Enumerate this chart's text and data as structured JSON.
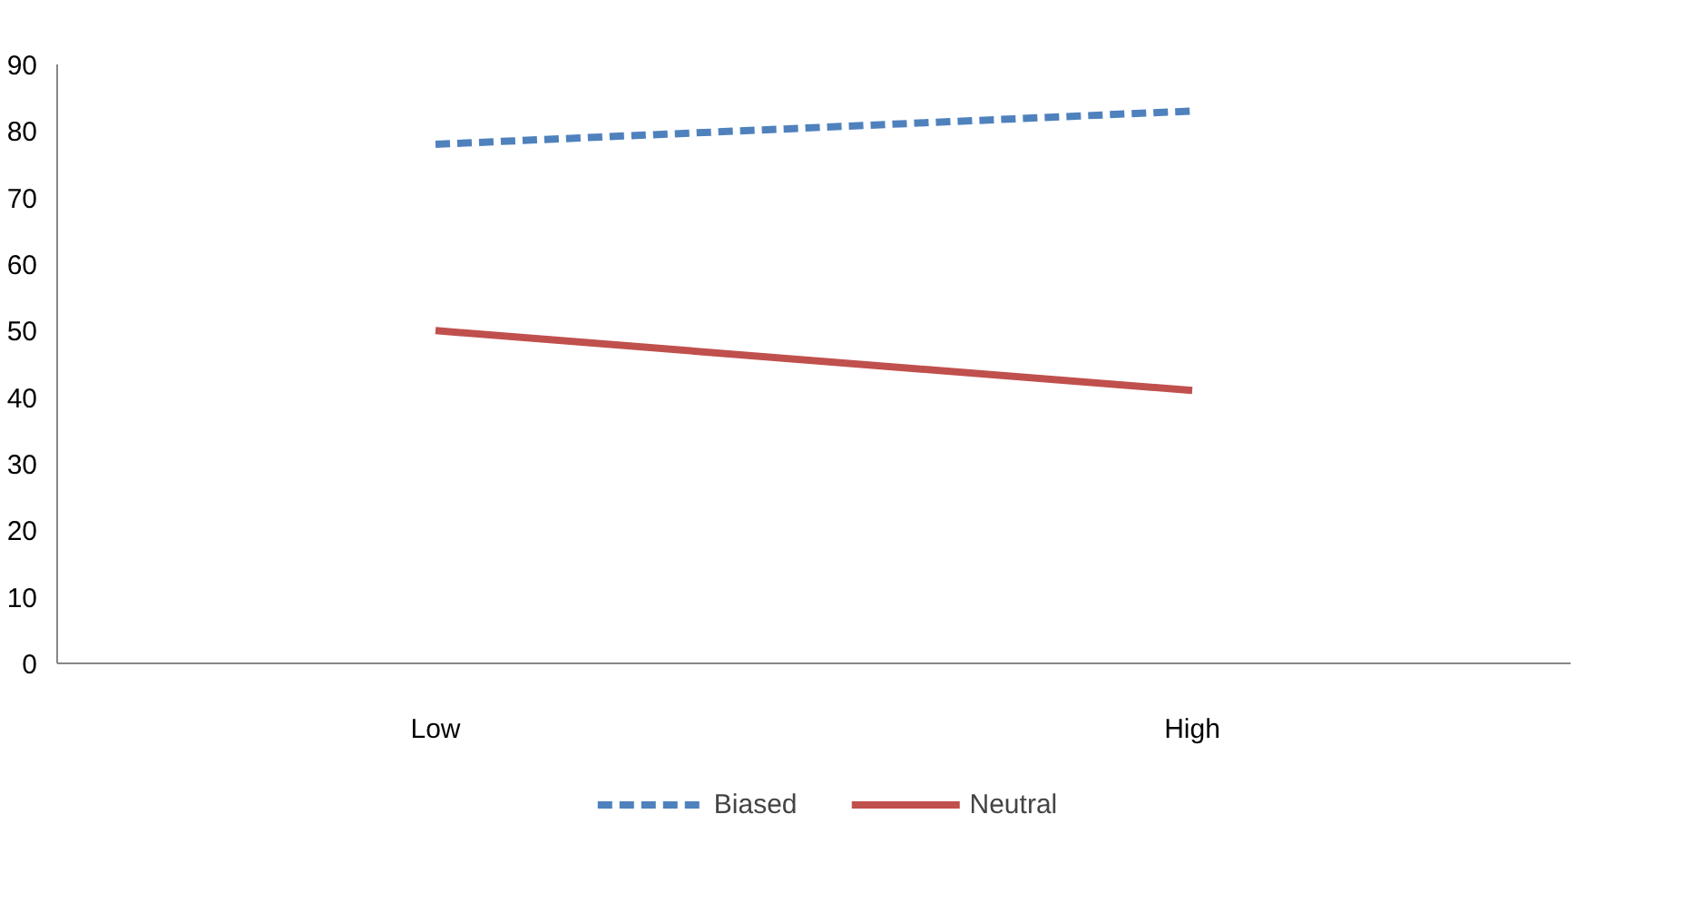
{
  "chart_data": {
    "type": "line",
    "categories": [
      "Low",
      "High"
    ],
    "series": [
      {
        "name": "Biased",
        "color": "#4f81bd",
        "values": [
          78,
          83
        ],
        "line_style": "dashed"
      },
      {
        "name": "Neutral",
        "color": "#c0504d",
        "values": [
          50,
          41
        ],
        "line_style": "solid"
      }
    ],
    "ylim": [
      0,
      90
    ],
    "yticks": [
      0,
      10,
      20,
      30,
      40,
      50,
      60,
      70,
      80,
      90
    ],
    "grid": false,
    "legend": "bottom",
    "marker": "none"
  }
}
